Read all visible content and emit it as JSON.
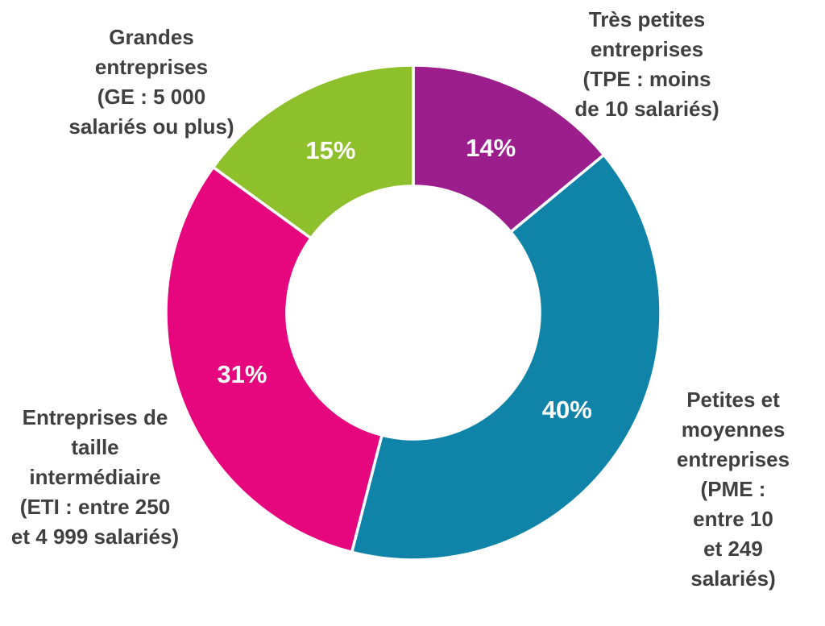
{
  "chart_data": {
    "type": "pie",
    "subtype": "donut",
    "title": "",
    "units": "%",
    "legend": "none",
    "direction": "clockwise",
    "start_angle_deg": 0,
    "inner_radius_ratio": 0.51,
    "background_color": "#FFFFFF",
    "category_label_color": "#404040",
    "pct_label_color": "#FFFFFF",
    "separator_color": "#FFFFFF",
    "slices": [
      {
        "id": "tpe",
        "label": "Très petites entreprises (TPE : moins de 10 salariés)",
        "label_display": "Très petites\nentreprises\n(TPE : moins\nde 10 salariés)",
        "value": 14,
        "pct_label": "14%",
        "color": "#9B1E8C"
      },
      {
        "id": "pme",
        "label": "Petites et moyennes entreprises (PME : entre 10 et 249 salariés)",
        "label_display": "Petites et\nmoyennes\nentreprises\n(PME : entre 10\net 249 salariés)",
        "value": 40,
        "pct_label": "40%",
        "color": "#0F84A8"
      },
      {
        "id": "eti",
        "label": "Entreprises de taille intermédiaire (ETI : entre 250 et 4 999 salariés)",
        "label_display": "Entreprises de\ntaille\nintermédiaire\n(ETI : entre 250\net 4 999 salariés)",
        "value": 31,
        "pct_label": "31%",
        "color": "#E6067E"
      },
      {
        "id": "ge",
        "label": "Grandes entreprises (GE : 5 000 salariés ou plus)",
        "label_display": "Grandes\nentreprises\n(GE : 5 000\nsalariés ou plus)",
        "value": 15,
        "pct_label": "15%",
        "color": "#8DC02B"
      }
    ]
  }
}
